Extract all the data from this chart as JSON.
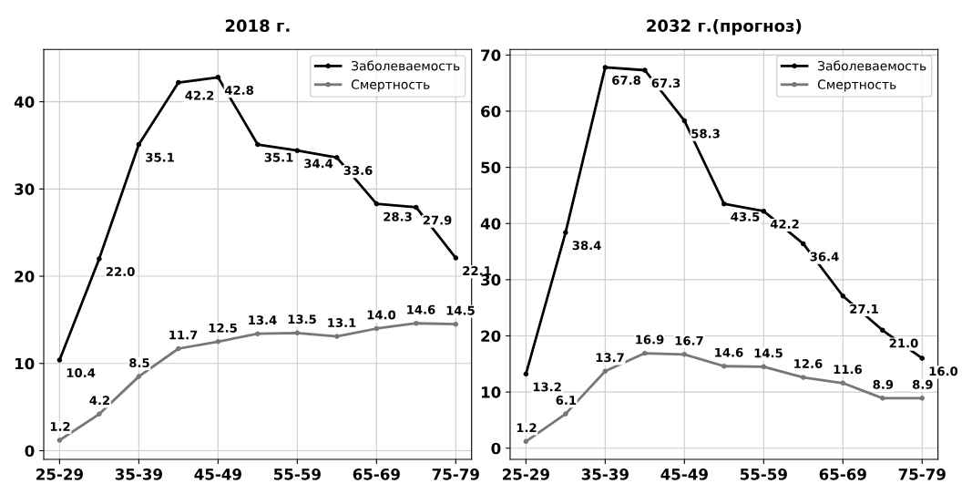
{
  "chart_data": [
    {
      "type": "line",
      "title": "2018 г.",
      "categories": [
        "25-29",
        null,
        "35-39",
        null,
        "45-49",
        null,
        "55-59",
        null,
        "65-69",
        null,
        "75-79"
      ],
      "series": [
        {
          "name": "Заболеваемость",
          "color": "#000000",
          "values": [
            10.4,
            22.0,
            35.1,
            42.2,
            42.8,
            35.1,
            34.4,
            33.6,
            28.3,
            27.9,
            22.1
          ],
          "value_labels": [
            "10.4",
            "22.0",
            "35.1",
            "42.2",
            "42.8",
            "35.1",
            "34.4",
            "33.6",
            "28.3",
            "27.9",
            "22.1"
          ]
        },
        {
          "name": "Смертность",
          "color": "#777777",
          "values": [
            1.2,
            4.2,
            8.5,
            11.7,
            12.5,
            13.4,
            13.5,
            13.1,
            14.0,
            14.6,
            14.5
          ],
          "value_labels": [
            "1.2",
            "4.2",
            "8.5",
            "11.7",
            "12.5",
            "13.4",
            "13.5",
            "13.1",
            "14.0",
            "14.6",
            "14.5"
          ]
        }
      ],
      "ylim": [
        -1,
        46
      ],
      "yticks": [
        0,
        10,
        20,
        30,
        40
      ],
      "grid": true,
      "legend": "top right",
      "marker": "circle",
      "line_style": "solid"
    },
    {
      "type": "line",
      "title": "2032 г.(прогноз)",
      "categories": [
        "25-29",
        null,
        "35-39",
        null,
        "45-49",
        null,
        "55-59",
        null,
        "65-69",
        null,
        "75-79"
      ],
      "series": [
        {
          "name": "Заболеваемость",
          "color": "#000000",
          "values": [
            13.2,
            38.4,
            67.8,
            67.3,
            58.3,
            43.5,
            42.2,
            36.4,
            27.1,
            21.0,
            16.0
          ],
          "value_labels": [
            "13.2",
            "38.4",
            "67.8",
            "67.3",
            "58.3",
            "43.5",
            "42.2",
            "36.4",
            "27.1",
            "21.0",
            "16.0"
          ]
        },
        {
          "name": "Смертность",
          "color": "#777777",
          "values": [
            1.2,
            6.1,
            13.7,
            16.9,
            16.7,
            14.6,
            14.5,
            12.6,
            11.6,
            8.9,
            8.9
          ],
          "value_labels": [
            "1.2",
            "6.1",
            "13.7",
            "16.9",
            "16.7",
            "14.6",
            "14.5",
            "12.6",
            "11.6",
            "8.9",
            "8.9"
          ]
        }
      ],
      "ylim": [
        -2,
        71
      ],
      "yticks": [
        0,
        10,
        20,
        30,
        40,
        50,
        60,
        70
      ],
      "grid": true,
      "legend": "top right",
      "marker": "circle",
      "line_style": "solid"
    }
  ]
}
